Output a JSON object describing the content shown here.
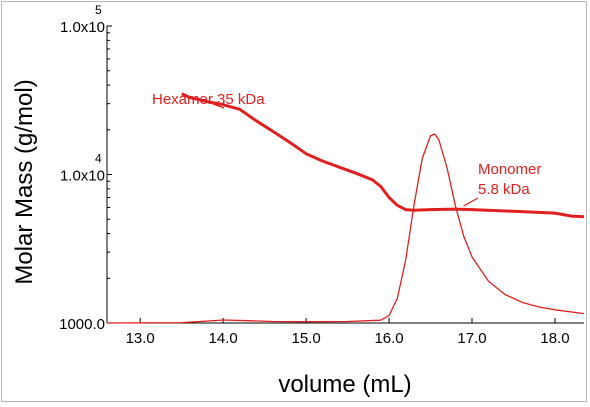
{
  "chart_data": {
    "type": "line",
    "title": "",
    "xlabel": "volume (mL)",
    "ylabel": "Molar Mass (g/mol)",
    "xlim": [
      12.6,
      18.35
    ],
    "ylim_molar_mass": [
      1000,
      100000
    ],
    "y_scale": "log",
    "grid": false,
    "x_ticks": [
      "13.0",
      "14.0",
      "15.0",
      "16.0",
      "17.0",
      "18.0"
    ],
    "x_tick_values": [
      13,
      14,
      15,
      16,
      17,
      18
    ],
    "y_ticks": [
      {
        "value": 1000,
        "label": "1000.0",
        "exp": ""
      },
      {
        "value": 10000,
        "label": "1.0x10",
        "exp": "4"
      },
      {
        "value": 100000,
        "label": "1.0x10",
        "exp": "5"
      }
    ],
    "line_color": "#e02020",
    "series": [
      {
        "role": "molar-mass",
        "style": "thick",
        "x": [
          13.5,
          13.6,
          13.8,
          14.0,
          14.2,
          14.4,
          14.6,
          14.8,
          15.0,
          15.2,
          15.4,
          15.6,
          15.8,
          15.9,
          16.0,
          16.1,
          16.2,
          16.3,
          16.5,
          16.8,
          17.0,
          17.5,
          18.0,
          18.2,
          18.35
        ],
        "y": [
          35000,
          33000,
          31000,
          29500,
          27500,
          23000,
          19500,
          16500,
          13800,
          12300,
          11200,
          10200,
          9200,
          8300,
          7000,
          6200,
          5800,
          5750,
          5800,
          5850,
          5800,
          5650,
          5500,
          5250,
          5200
        ]
      },
      {
        "role": "detector-signal",
        "style": "thin",
        "signal_scale": "relative 0-1",
        "x": [
          12.6,
          13.5,
          13.8,
          14.0,
          14.3,
          14.6,
          15.0,
          15.5,
          15.9,
          16.0,
          16.1,
          16.2,
          16.3,
          16.4,
          16.5,
          16.55,
          16.6,
          16.7,
          16.8,
          16.9,
          17.0,
          17.2,
          17.4,
          17.6,
          17.8,
          18.0,
          18.35
        ],
        "y": [
          0.0,
          0.002,
          0.01,
          0.016,
          0.012,
          0.008,
          0.007,
          0.008,
          0.015,
          0.04,
          0.13,
          0.33,
          0.62,
          0.87,
          0.99,
          1.0,
          0.97,
          0.82,
          0.62,
          0.46,
          0.35,
          0.22,
          0.15,
          0.11,
          0.085,
          0.07,
          0.05
        ]
      }
    ],
    "annotations": [
      {
        "lines": [
          "Hexamer 35 kDa"
        ],
        "points_to_x": 13.7
      },
      {
        "lines": [
          "Monomer",
          "5.8 kDa"
        ],
        "points_to_x": 16.85
      }
    ]
  }
}
